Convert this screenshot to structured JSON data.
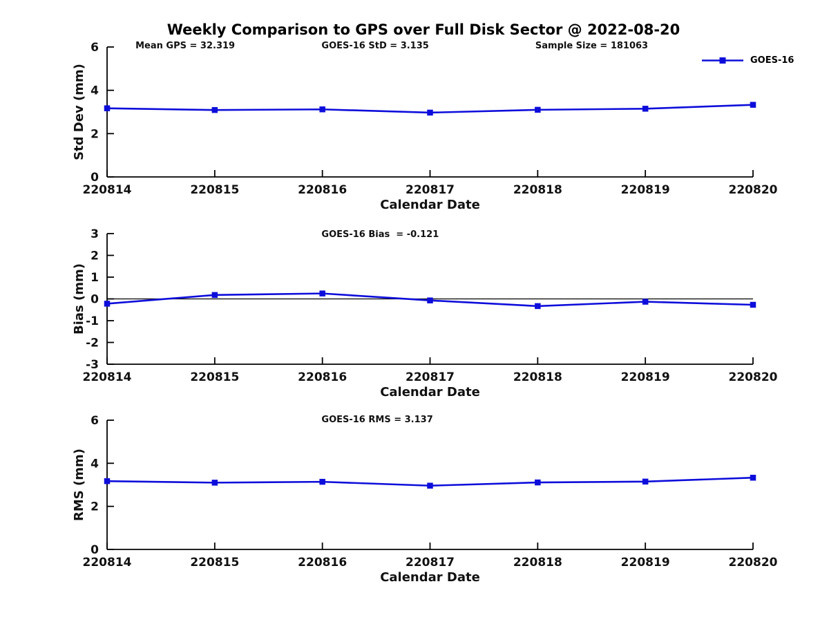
{
  "title": "Weekly Comparison to GPS over Full Disk Sector @ 2022-08-20",
  "legend": {
    "label": "GOES-16",
    "color": "#0d0ddb"
  },
  "chart_data": [
    {
      "name": "std-dev",
      "type": "line",
      "categories": [
        "220814",
        "220815",
        "220816",
        "220817",
        "220818",
        "220819",
        "220820"
      ],
      "series": [
        {
          "name": "GOES-16",
          "values": [
            3.17,
            3.09,
            3.12,
            2.97,
            3.1,
            3.15,
            3.33
          ]
        }
      ],
      "xlabel": "Calendar Date",
      "ylabel": "Std Dev (mm)",
      "ylim": [
        0,
        6
      ],
      "yticks": [
        0,
        2,
        4,
        6
      ],
      "grid": false,
      "zero_line": false,
      "annotations": [
        {
          "text": "Mean GPS = 32.319",
          "xfrac": 0.044
        },
        {
          "text": "GOES-16 StD = 3.135",
          "xfrac": 0.332
        },
        {
          "text": "Sample Size = 181063",
          "xfrac": 0.663
        }
      ]
    },
    {
      "name": "bias",
      "type": "line",
      "categories": [
        "220814",
        "220815",
        "220816",
        "220817",
        "220818",
        "220819",
        "220820"
      ],
      "series": [
        {
          "name": "GOES-16",
          "values": [
            -0.22,
            0.18,
            0.25,
            -0.07,
            -0.33,
            -0.13,
            -0.27
          ]
        }
      ],
      "xlabel": "Calendar Date",
      "ylabel": "Bias (mm)",
      "ylim": [
        -3,
        3
      ],
      "yticks": [
        -3,
        -2,
        -1,
        0,
        1,
        2,
        3
      ],
      "grid": false,
      "zero_line": true,
      "annotations": [
        {
          "text": "GOES-16 Bias  = -0.121",
          "xfrac": 0.332
        }
      ]
    },
    {
      "name": "rms",
      "type": "line",
      "categories": [
        "220814",
        "220815",
        "220816",
        "220817",
        "220818",
        "220819",
        "220820"
      ],
      "series": [
        {
          "name": "GOES-16",
          "values": [
            3.17,
            3.1,
            3.14,
            2.96,
            3.11,
            3.15,
            3.33
          ]
        }
      ],
      "xlabel": "Calendar Date",
      "ylabel": "RMS (mm)",
      "ylim": [
        0,
        6
      ],
      "yticks": [
        0,
        2,
        4,
        6
      ],
      "grid": false,
      "zero_line": false,
      "annotations": [
        {
          "text": "GOES-16 RMS = 3.137",
          "xfrac": 0.332
        }
      ]
    }
  ]
}
